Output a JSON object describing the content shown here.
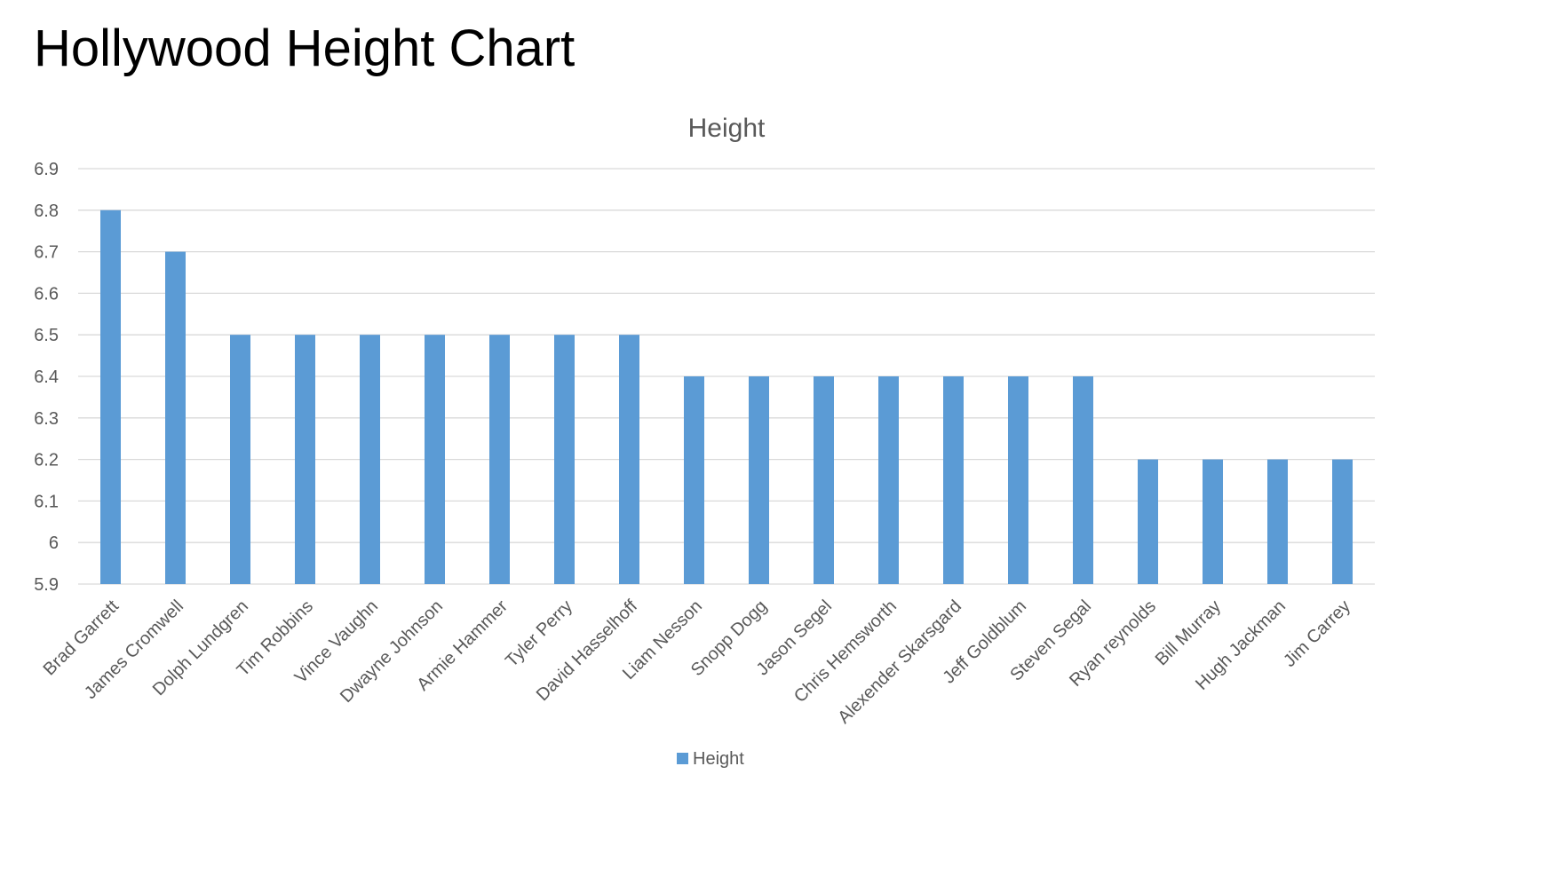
{
  "page": {
    "title": "Hollywood Height Chart"
  },
  "chart_data": {
    "type": "bar",
    "title": "Height",
    "xlabel": "",
    "ylabel": "",
    "ylim": [
      5.9,
      6.9
    ],
    "yticks": [
      "5.9",
      "6",
      "6.1",
      "6.2",
      "6.3",
      "6.4",
      "6.5",
      "6.6",
      "6.7",
      "6.8",
      "6.9"
    ],
    "grid": true,
    "legend_position": "bottom",
    "categories": [
      "Brad Garrett",
      "James Cromwell",
      "Dolph Lundgren",
      "Tim Robbins",
      "Vince Vaughn",
      "Dwayne Johnson",
      "Armie Hammer",
      "Tyler Perry",
      "David Hasselhoff",
      "Liam Nesson",
      "Snopp Dogg",
      "Jason Segel",
      "Chris Hemsworth",
      "Alexender Skarsgard",
      "Jeff Goldblum",
      "Steven Segal",
      "Ryan reynolds",
      "Bill Murray",
      "Hugh Jackman",
      "Jim Carrey"
    ],
    "series": [
      {
        "name": "Height",
        "color": "#5B9BD5",
        "values": [
          6.8,
          6.7,
          6.5,
          6.5,
          6.5,
          6.5,
          6.5,
          6.5,
          6.5,
          6.4,
          6.4,
          6.4,
          6.4,
          6.4,
          6.4,
          6.4,
          6.2,
          6.2,
          6.2,
          6.2
        ]
      }
    ],
    "colors": {
      "gridline": "#D9D9D9",
      "text": "#595959"
    }
  }
}
